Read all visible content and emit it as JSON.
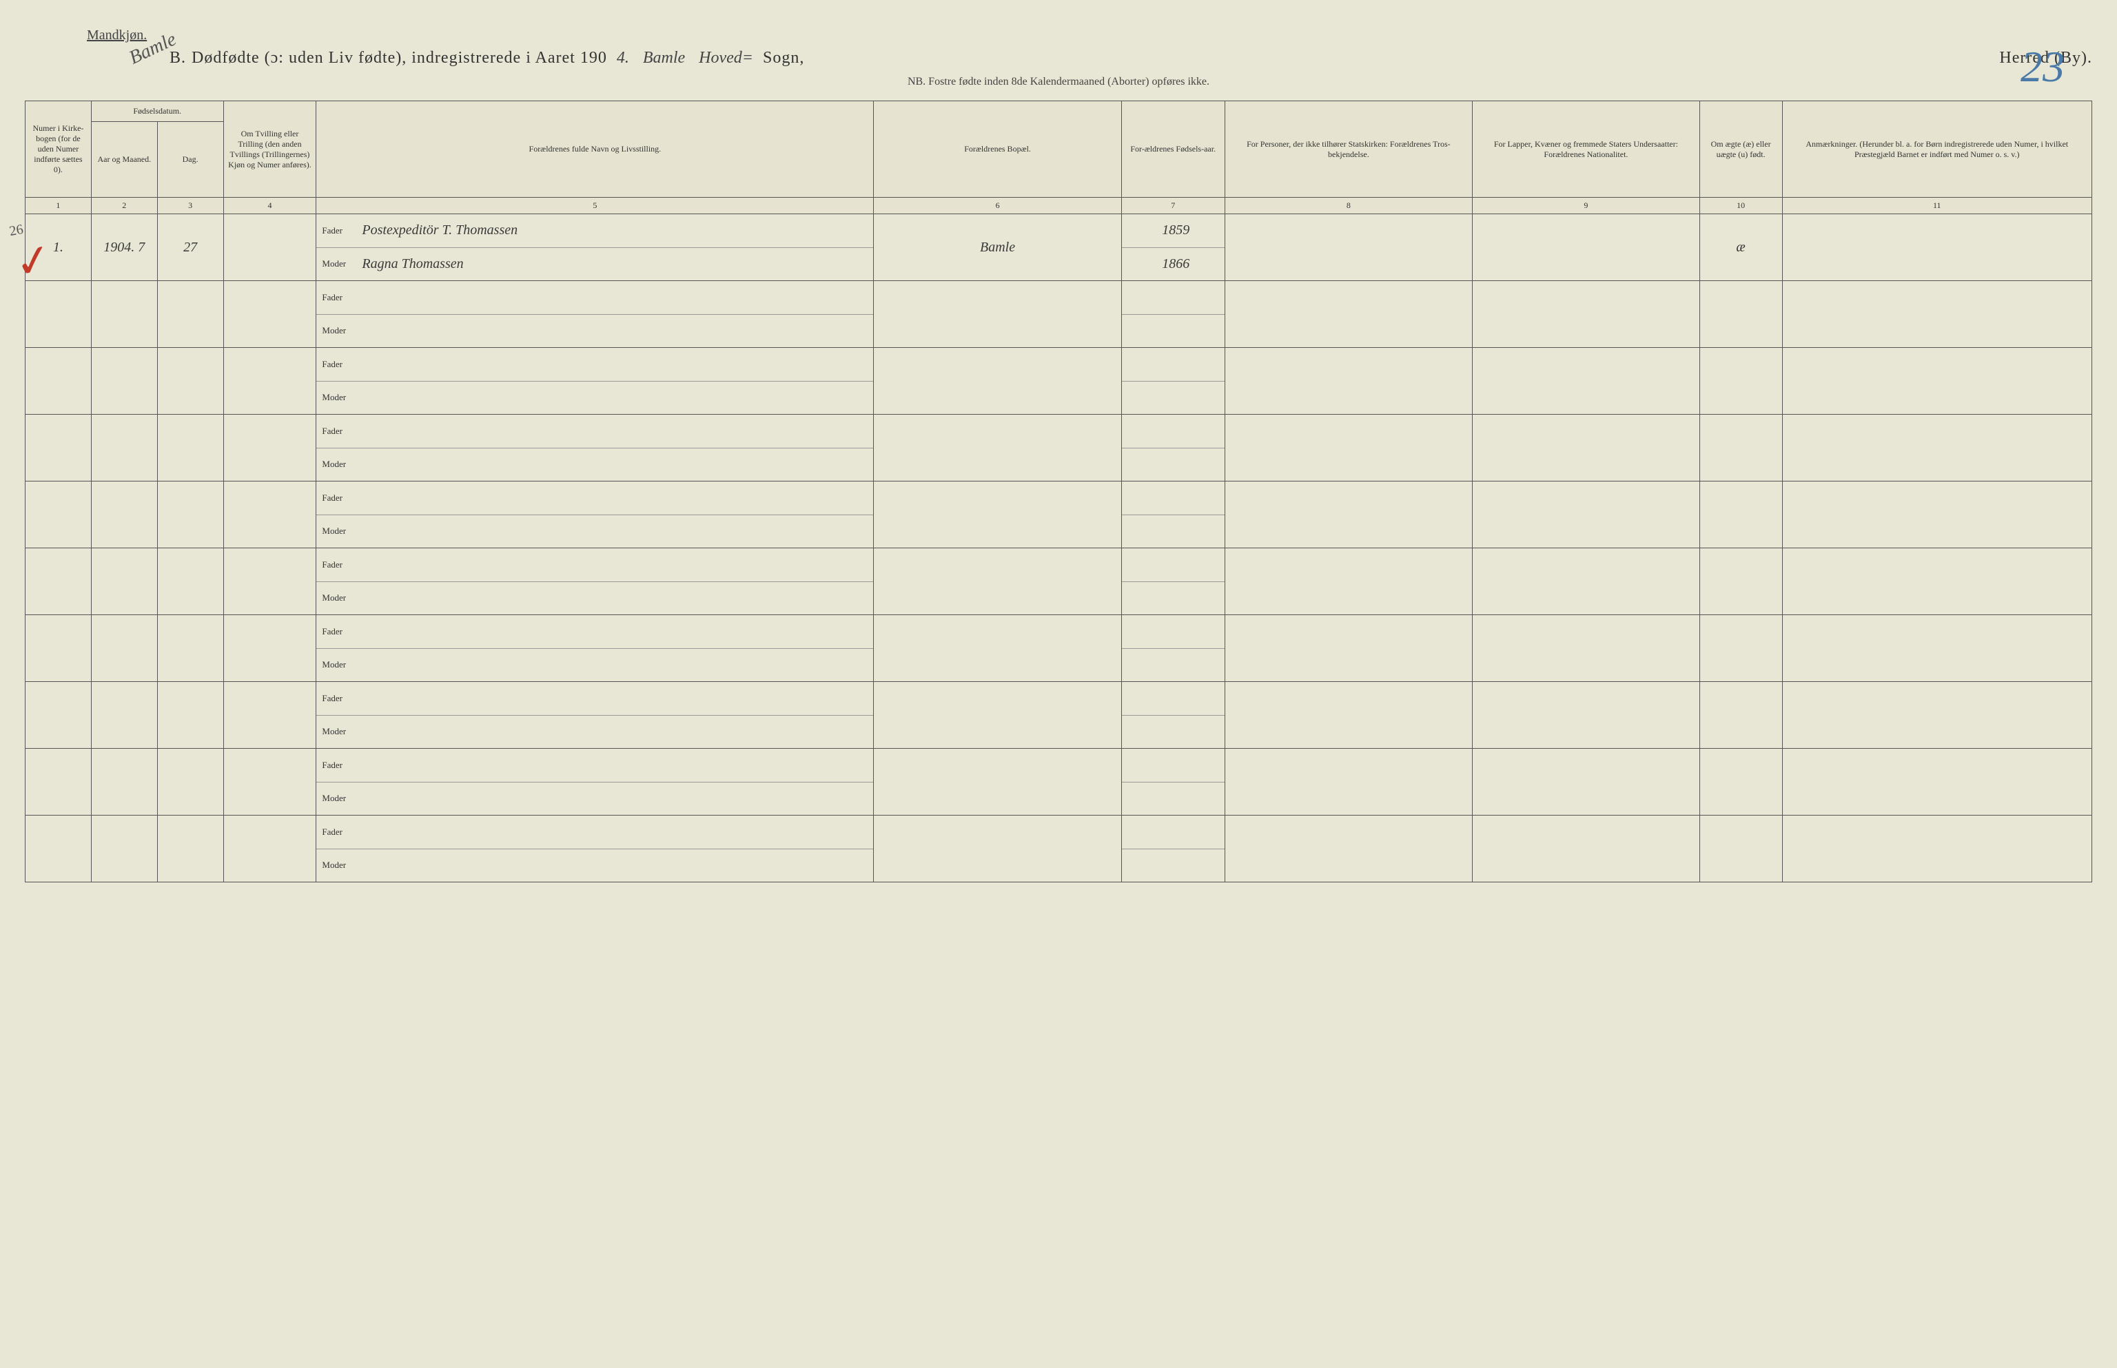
{
  "header": {
    "gender_label": "Mandkjøn.",
    "diagonal_note": "Bamle",
    "section_letter": "B.",
    "title_printed_1": "Dødfødte (ɔ: uden Liv fødte), indregistrerede i Aaret 190",
    "year_suffix_hand": "4.",
    "parish_hand_1": "Bamle",
    "parish_hand_2": "Hoved=",
    "sogn_label": "Sogn,",
    "herred_label": "Herred (By).",
    "page_number": "23",
    "subtitle": "NB.  Fostre fødte inden 8de Kalendermaaned (Aborter) opføres ikke."
  },
  "columns": {
    "c1": "Numer i Kirke-bogen (for de uden Numer indførte sættes 0).",
    "c2_group": "Fødselsdatum.",
    "c2a": "Aar og Maaned.",
    "c2b": "Dag.",
    "c3": "Om Tvilling eller Trilling (den anden Tvillings (Trillingernes) Kjøn og Numer anføres).",
    "c4": "Forældrenes fulde Navn og Livsstilling.",
    "c5": "Forældrenes Bopæl.",
    "c6": "For-ældrenes Fødsels-aar.",
    "c7": "For Personer, der ikke tilhører Statskirken: Forældrenes Tros-bekjendelse.",
    "c8": "For Lapper, Kvæner og fremmede Staters Undersaatter: Forældrenes Nationalitet.",
    "c9": "Om ægte (æ) eller uægte (u) født.",
    "c10": "Anmærkninger. (Herunder bl. a. for Børn indregistrerede uden Numer, i hvilket Præstegjæld Barnet er indført med Numer o. s. v.)"
  },
  "col_nums": [
    "1",
    "2",
    "3",
    "4",
    "5",
    "6",
    "7",
    "8",
    "9",
    "10",
    "11"
  ],
  "labels": {
    "fader": "Fader",
    "moder": "Moder"
  },
  "entries": [
    {
      "num": "1.",
      "year_month": "1904. 7",
      "day": "27",
      "twin": "",
      "fader_name": "Postexpeditör T. Thomassen",
      "moder_name": "Ragna Thomassen",
      "bopael": "Bamle",
      "fader_year": "1859",
      "moder_year": "1866",
      "tros": "",
      "nat": "",
      "aegte": "æ",
      "anm": ""
    },
    {
      "num": "",
      "year_month": "",
      "day": "",
      "twin": "",
      "fader_name": "",
      "moder_name": "",
      "bopael": "",
      "fader_year": "",
      "moder_year": "",
      "tros": "",
      "nat": "",
      "aegte": "",
      "anm": ""
    },
    {
      "num": "",
      "year_month": "",
      "day": "",
      "twin": "",
      "fader_name": "",
      "moder_name": "",
      "bopael": "",
      "fader_year": "",
      "moder_year": "",
      "tros": "",
      "nat": "",
      "aegte": "",
      "anm": ""
    },
    {
      "num": "",
      "year_month": "",
      "day": "",
      "twin": "",
      "fader_name": "",
      "moder_name": "",
      "bopael": "",
      "fader_year": "",
      "moder_year": "",
      "tros": "",
      "nat": "",
      "aegte": "",
      "anm": ""
    },
    {
      "num": "",
      "year_month": "",
      "day": "",
      "twin": "",
      "fader_name": "",
      "moder_name": "",
      "bopael": "",
      "fader_year": "",
      "moder_year": "",
      "tros": "",
      "nat": "",
      "aegte": "",
      "anm": ""
    },
    {
      "num": "",
      "year_month": "",
      "day": "",
      "twin": "",
      "fader_name": "",
      "moder_name": "",
      "bopael": "",
      "fader_year": "",
      "moder_year": "",
      "tros": "",
      "nat": "",
      "aegte": "",
      "anm": ""
    },
    {
      "num": "",
      "year_month": "",
      "day": "",
      "twin": "",
      "fader_name": "",
      "moder_name": "",
      "bopael": "",
      "fader_year": "",
      "moder_year": "",
      "tros": "",
      "nat": "",
      "aegte": "",
      "anm": ""
    },
    {
      "num": "",
      "year_month": "",
      "day": "",
      "twin": "",
      "fader_name": "",
      "moder_name": "",
      "bopael": "",
      "fader_year": "",
      "moder_year": "",
      "tros": "",
      "nat": "",
      "aegte": "",
      "anm": ""
    },
    {
      "num": "",
      "year_month": "",
      "day": "",
      "twin": "",
      "fader_name": "",
      "moder_name": "",
      "bopael": "",
      "fader_year": "",
      "moder_year": "",
      "tros": "",
      "nat": "",
      "aegte": "",
      "anm": ""
    },
    {
      "num": "",
      "year_month": "",
      "day": "",
      "twin": "",
      "fader_name": "",
      "moder_name": "",
      "bopael": "",
      "fader_year": "",
      "moder_year": "",
      "tros": "",
      "nat": "",
      "aegte": "",
      "anm": ""
    }
  ],
  "marginal_mark": "✓",
  "marginal_num": "26",
  "style": {
    "background": "#e8e6d4",
    "text_color": "#333333",
    "border_color": "#555555",
    "page_number_color": "#4a7aa8",
    "red_mark_color": "#c23a2a",
    "handwriting_color": "#3a3a3a",
    "header_font_size": 24,
    "body_font_size": 13
  }
}
